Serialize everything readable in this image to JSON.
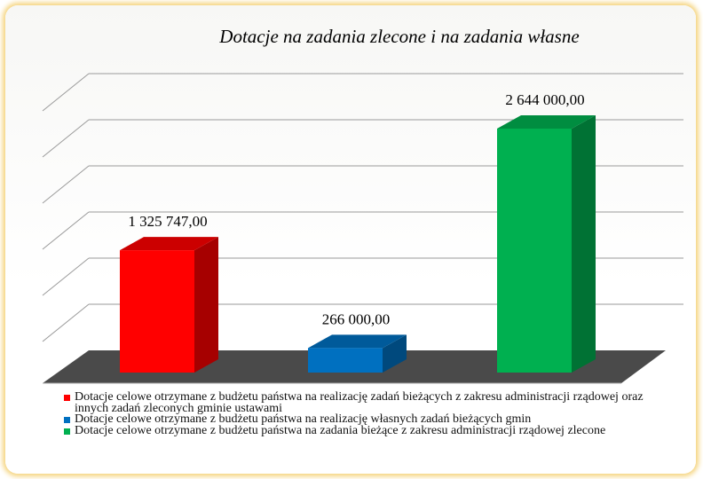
{
  "chart_data": {
    "type": "bar3d",
    "title": "Dotacje na zadania zlecone i na zadania własne",
    "categories": [
      "Dotacje celowe otrzymane z budżetu państwa na realizację zadań bieżących z zakresu administracji rządowej oraz innych zadań zleconych gminie ustawami",
      "Dotacje celowe otrzymane z budżetu państwa na realizację własnych zadań bieżących gmin",
      "Dotacje celowe otrzymane z budżetu państwa na zadania bieżące z zakresu administracji rządowej zlecone"
    ],
    "values": [
      1325747,
      266000,
      2644000
    ],
    "value_labels": [
      "1 325 747,00",
      "266 000,00",
      "2 644 000,00"
    ],
    "colors": [
      "#ff0000",
      "#0070c0",
      "#00b050"
    ],
    "ylim": [
      0,
      3000000
    ],
    "yticks": [
      0,
      500000,
      1000000,
      1500000,
      2000000,
      2500000,
      3000000
    ],
    "grid": true,
    "legend": "bottom"
  }
}
